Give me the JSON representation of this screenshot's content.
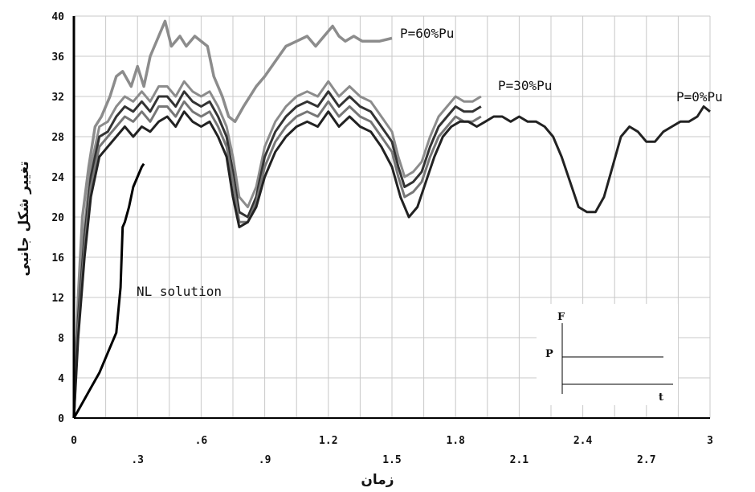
{
  "chart_data": {
    "type": "line",
    "xlabel": "زمان",
    "ylabel": "تغییر شکل جانبی",
    "xlim": [
      0,
      3
    ],
    "ylim": [
      0,
      40
    ],
    "grid": true,
    "x_ticks": [
      "0",
      ".3",
      ".6",
      ".9",
      "1.2",
      "1.5",
      "1.8",
      "2.1",
      "2.4",
      "2.7",
      "3"
    ],
    "y_ticks": [
      "0",
      "4",
      "8",
      "12",
      "16",
      "20",
      "24",
      "28",
      "32",
      "36",
      "40"
    ],
    "annotations": {
      "p60": "P=60%Pu",
      "p30": "P=30%Pu",
      "p0": "P=0%Pu",
      "nl": "NL solution"
    },
    "inset": {
      "f": "F",
      "p": "P",
      "t": "t"
    },
    "series": [
      {
        "color": "#8c8c8c",
        "x": [
          0,
          0.02,
          0.04,
          0.07,
          0.1,
          0.13,
          0.17,
          0.2,
          0.23,
          0.27,
          0.3,
          0.33,
          0.36,
          0.4,
          0.43,
          0.46,
          0.5,
          0.53,
          0.57,
          0.6,
          0.63,
          0.66,
          0.7,
          0.73,
          0.76,
          0.8,
          0.83,
          0.86,
          0.9,
          0.95,
          1.0,
          1.05,
          1.1,
          1.14,
          1.18,
          1.22,
          1.25,
          1.28,
          1.32,
          1.36,
          1.4,
          1.44,
          1.5
        ],
        "y": [
          0,
          12,
          20,
          25,
          29,
          30,
          32,
          34,
          34.5,
          33,
          35,
          33,
          36,
          38,
          39.5,
          37,
          38,
          37,
          38,
          37.5,
          37,
          34,
          32,
          30,
          29.5,
          31,
          32,
          33,
          34,
          35.5,
          37,
          37.5,
          38,
          37,
          38,
          39,
          38,
          37.5,
          38,
          37.5,
          37.5,
          37.5,
          37.8
        ]
      },
      {
        "color": "#8c8c8c",
        "x": [
          0,
          0.02,
          0.05,
          0.08,
          0.12,
          0.16,
          0.2,
          0.24,
          0.28,
          0.32,
          0.36,
          0.4,
          0.44,
          0.48,
          0.52,
          0.56,
          0.6,
          0.64,
          0.68,
          0.72,
          0.75,
          0.78,
          0.82,
          0.86,
          0.9,
          0.95,
          1.0,
          1.05,
          1.1,
          1.15,
          1.2,
          1.25,
          1.3,
          1.35,
          1.4,
          1.45,
          1.5,
          1.53,
          1.56,
          1.6,
          1.64,
          1.68,
          1.72,
          1.76,
          1.8,
          1.84,
          1.88,
          1.92
        ],
        "y": [
          0,
          11,
          19,
          25,
          29,
          29.5,
          31,
          32,
          31.5,
          32.5,
          31.5,
          33,
          33,
          32,
          33.5,
          32.5,
          32,
          32.5,
          31,
          29,
          26,
          22,
          21,
          23,
          27,
          29.5,
          31,
          32,
          32.5,
          32,
          33.5,
          32,
          33,
          32,
          31.5,
          30,
          28.5,
          26,
          24,
          24.5,
          25.5,
          28,
          30,
          31,
          32,
          31.5,
          31.5,
          32
        ]
      },
      {
        "color": "#333333",
        "x": [
          0,
          0.02,
          0.05,
          0.08,
          0.12,
          0.16,
          0.2,
          0.24,
          0.28,
          0.32,
          0.36,
          0.4,
          0.44,
          0.48,
          0.52,
          0.56,
          0.6,
          0.64,
          0.68,
          0.72,
          0.75,
          0.78,
          0.82,
          0.86,
          0.9,
          0.95,
          1.0,
          1.05,
          1.1,
          1.15,
          1.2,
          1.25,
          1.3,
          1.35,
          1.4,
          1.45,
          1.5,
          1.53,
          1.56,
          1.6,
          1.64,
          1.68,
          1.72,
          1.76,
          1.8,
          1.84,
          1.88,
          1.92
        ],
        "y": [
          0,
          10,
          18,
          24,
          28,
          28.5,
          30,
          31,
          30.5,
          31.5,
          30.5,
          32,
          32,
          31,
          32.5,
          31.5,
          31,
          31.5,
          30,
          28,
          24.5,
          20.5,
          20,
          22,
          26,
          28.5,
          30,
          31,
          31.5,
          31,
          32.5,
          31,
          32,
          31,
          30.5,
          29,
          27.5,
          25,
          23,
          23.5,
          24.5,
          27,
          29,
          30,
          31,
          30.5,
          30.5,
          31
        ]
      },
      {
        "color": "#777777",
        "x": [
          0,
          0.02,
          0.05,
          0.08,
          0.12,
          0.16,
          0.2,
          0.24,
          0.28,
          0.32,
          0.36,
          0.4,
          0.44,
          0.48,
          0.52,
          0.56,
          0.6,
          0.64,
          0.68,
          0.72,
          0.75,
          0.78,
          0.82,
          0.86,
          0.9,
          0.95,
          1.0,
          1.05,
          1.1,
          1.15,
          1.2,
          1.25,
          1.3,
          1.35,
          1.4,
          1.45,
          1.5,
          1.53,
          1.56,
          1.6,
          1.64,
          1.68,
          1.72,
          1.76,
          1.8,
          1.84,
          1.88,
          1.92
        ],
        "y": [
          0,
          9,
          17,
          23,
          27,
          28,
          29,
          30,
          29.5,
          30.5,
          29.5,
          31,
          31,
          30,
          31.5,
          30.5,
          30,
          30.5,
          29,
          27,
          23.5,
          19.5,
          19.5,
          21.5,
          25,
          27.5,
          29,
          30,
          30.5,
          30,
          31.5,
          30,
          31,
          30,
          29.5,
          28,
          26.5,
          24,
          22,
          22.5,
          23.5,
          26,
          28,
          29,
          30,
          29.5,
          29.5,
          30
        ]
      },
      {
        "color": "#222222",
        "x": [
          0,
          0.02,
          0.05,
          0.08,
          0.12,
          0.16,
          0.2,
          0.24,
          0.28,
          0.32,
          0.36,
          0.4,
          0.44,
          0.48,
          0.52,
          0.56,
          0.6,
          0.64,
          0.68,
          0.72,
          0.75,
          0.78,
          0.82,
          0.86,
          0.9,
          0.95,
          1.0,
          1.05,
          1.1,
          1.15,
          1.2,
          1.25,
          1.3,
          1.35,
          1.4,
          1.45,
          1.5,
          1.54,
          1.58,
          1.62,
          1.66,
          1.7,
          1.74,
          1.78,
          1.82,
          1.86,
          1.9,
          1.94,
          1.98,
          2.02,
          2.06,
          2.1,
          2.14,
          2.18,
          2.22,
          2.26,
          2.3,
          2.34,
          2.38,
          2.42,
          2.46,
          2.5,
          2.54,
          2.58,
          2.62,
          2.66,
          2.7,
          2.74,
          2.78,
          2.82,
          2.86,
          2.9,
          2.94,
          2.97,
          3.0
        ],
        "y": [
          0,
          8,
          16,
          22,
          26,
          27,
          28,
          29,
          28,
          29,
          28.5,
          29.5,
          30,
          29,
          30.5,
          29.5,
          29,
          29.5,
          28,
          26,
          22,
          19,
          19.5,
          21,
          24,
          26.5,
          28,
          29,
          29.5,
          29,
          30.5,
          29,
          30,
          29,
          28.5,
          27,
          25,
          22,
          20,
          21,
          23.5,
          26,
          28,
          29,
          29.5,
          29.5,
          29,
          29.5,
          30,
          30,
          29.5,
          30,
          29.5,
          29.5,
          29,
          28,
          26,
          23.5,
          21,
          20.5,
          20.5,
          22,
          25,
          28,
          29,
          28.5,
          27.5,
          27.5,
          28.5,
          29,
          29.5,
          29.5,
          30,
          31,
          30.5
        ]
      },
      {
        "color": "#000000",
        "x": [
          0,
          0.04,
          0.08,
          0.12,
          0.16,
          0.2,
          0.22,
          0.23,
          0.24,
          0.26,
          0.28,
          0.3,
          0.32,
          0.33
        ],
        "y": [
          0,
          1.5,
          3,
          4.5,
          6.5,
          8.5,
          13,
          19,
          19.5,
          21,
          23,
          24,
          25,
          25.3
        ]
      }
    ]
  }
}
